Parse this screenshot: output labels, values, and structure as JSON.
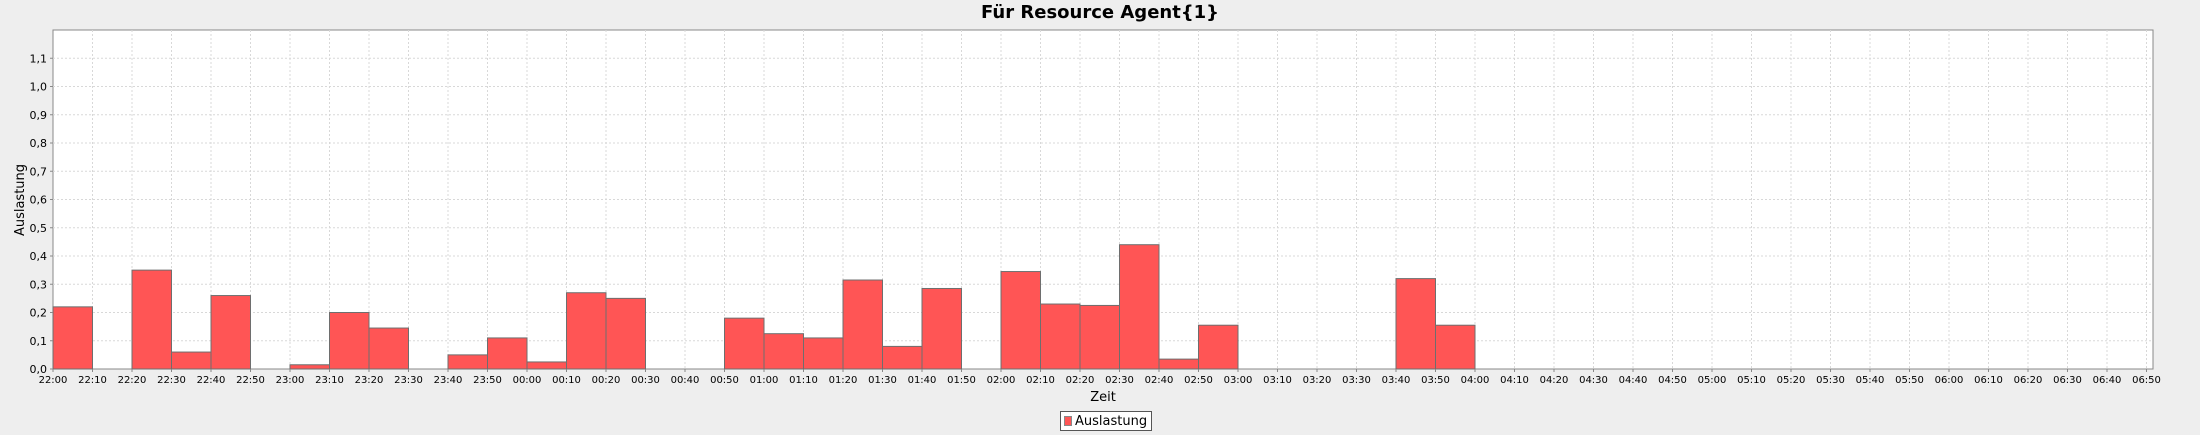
{
  "chart_data": {
    "type": "bar",
    "title": "Für Resource Agent{1}",
    "xlabel": "Zeit",
    "ylabel": "Auslastung",
    "ylim": [
      0,
      1.2
    ],
    "yticks": [
      "0,0",
      "0,1",
      "0,2",
      "0,3",
      "0,4",
      "0,5",
      "0,6",
      "0,7",
      "0,8",
      "0,9",
      "1,0",
      "1,1"
    ],
    "grid": true,
    "legend_position": "bottom",
    "bar_color": "#ff5555",
    "categories": [
      "22:00",
      "22:10",
      "22:20",
      "22:30",
      "22:40",
      "22:50",
      "23:00",
      "23:10",
      "23:20",
      "23:30",
      "23:40",
      "23:50",
      "00:00",
      "00:10",
      "00:20",
      "00:30",
      "00:40",
      "00:50",
      "01:00",
      "01:10",
      "01:20",
      "01:30",
      "01:40",
      "01:50",
      "02:00",
      "02:10",
      "02:20",
      "02:30",
      "02:40",
      "02:50",
      "03:00",
      "03:10",
      "03:20",
      "03:30",
      "03:40",
      "03:50",
      "04:00",
      "04:10",
      "04:20",
      "04:30",
      "04:40",
      "04:50",
      "05:00",
      "05:10",
      "05:20",
      "05:30",
      "05:40",
      "05:50",
      "06:00",
      "06:10",
      "06:20",
      "06:30",
      "06:40",
      "06:50"
    ],
    "series": [
      {
        "name": "Auslastung",
        "values": [
          0.22,
          0,
          0.35,
          0.06,
          0.26,
          0,
          0.015,
          0.2,
          0.145,
          0,
          0.05,
          0.11,
          0.025,
          0.27,
          0.25,
          0,
          0,
          0.18,
          0.125,
          0.11,
          0.315,
          0.08,
          0.285,
          0,
          0.345,
          0.23,
          0.225,
          0.44,
          0.035,
          0.155,
          0,
          0,
          0,
          0,
          0.32,
          0.155,
          0,
          0,
          0,
          0,
          0,
          0,
          0,
          0,
          0,
          0,
          0,
          0,
          0,
          0,
          0,
          0,
          0,
          0
        ]
      }
    ]
  }
}
